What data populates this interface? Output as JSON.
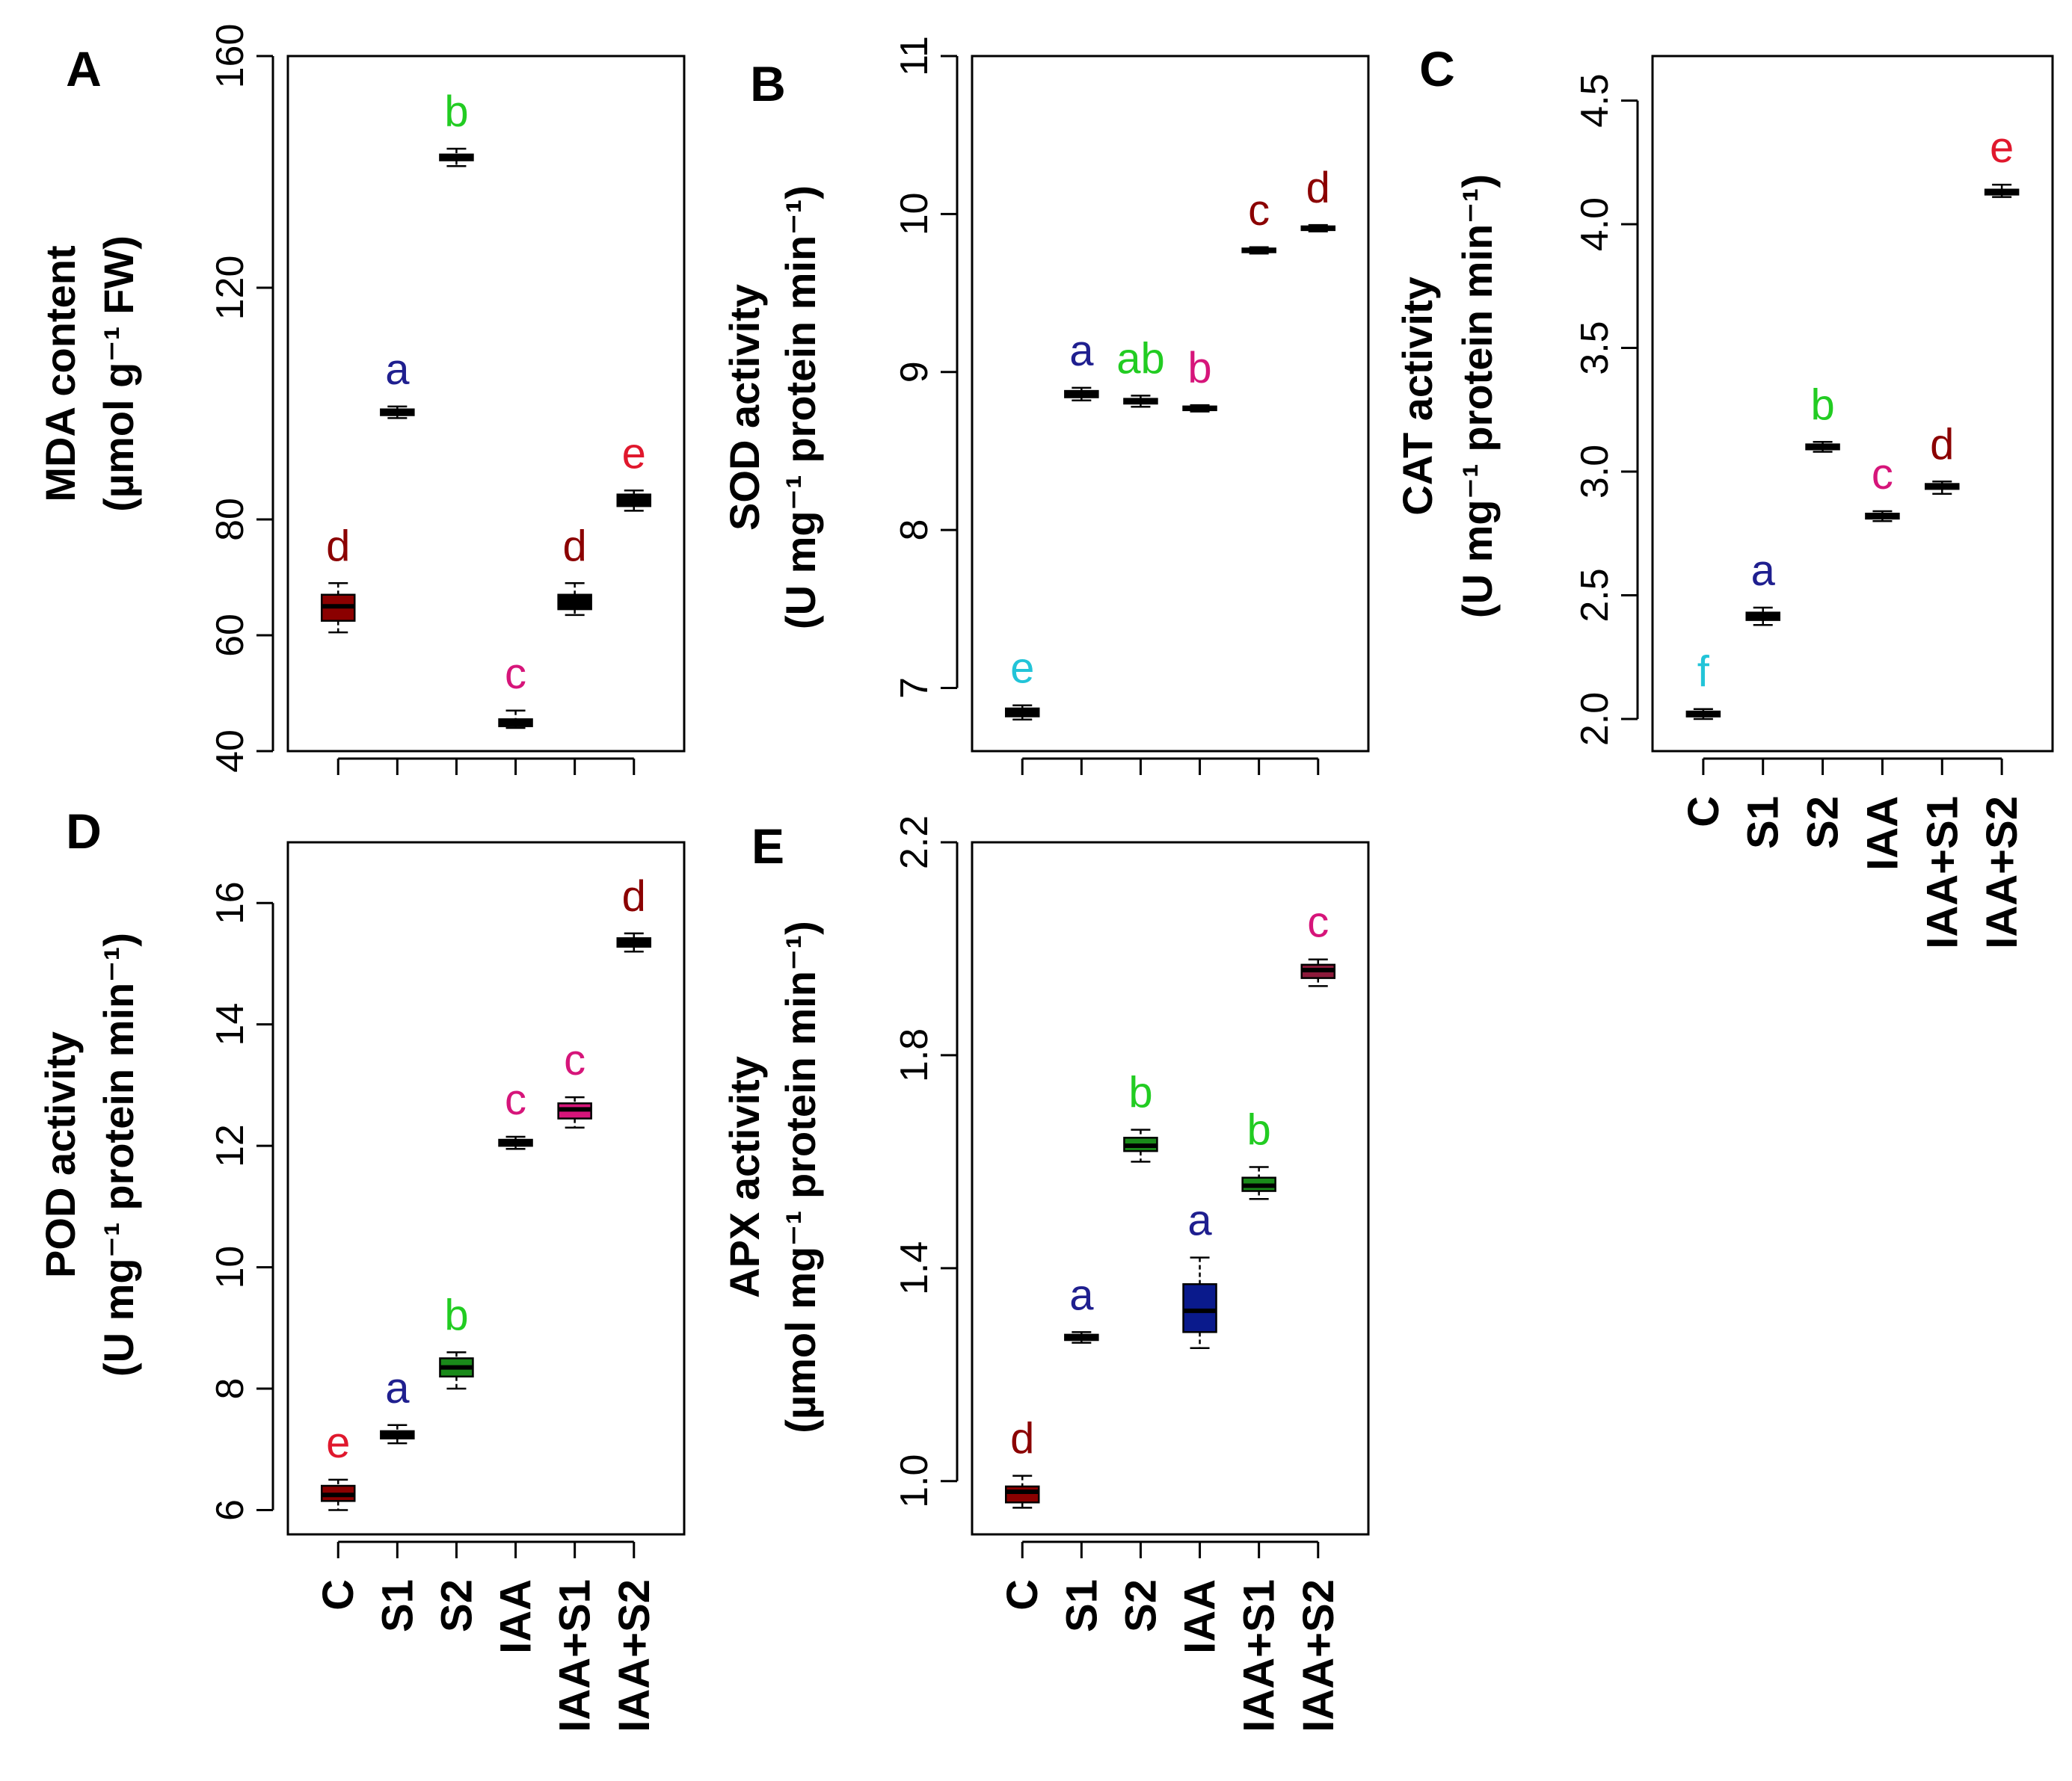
{
  "chart_data": [
    {
      "type": "box",
      "panel": "A",
      "ylabel_line1": "MDA content",
      "ylabel_line2": "(µmol g⁻¹ FW)",
      "ylim": [
        40,
        160
      ],
      "yticks": [
        40,
        60,
        80,
        120,
        160
      ],
      "ytick_labels": [
        "40",
        "60",
        "80",
        "120",
        "160"
      ],
      "categories": [
        "C",
        "S1",
        "S2",
        "IAA",
        "IAA+S1",
        "IAA+S2"
      ],
      "show_category_labels": false,
      "boxes": [
        {
          "min": 60.5,
          "q1": 62.5,
          "median": 65,
          "q3": 67,
          "max": 69,
          "fill": "#8b0000"
        },
        {
          "min": 97.5,
          "q1": 98,
          "median": 98.5,
          "q3": 99,
          "max": 99.5,
          "fill": "#000000"
        },
        {
          "min": 141,
          "q1": 142,
          "median": 142.5,
          "q3": 143,
          "max": 144,
          "fill": "#000000"
        },
        {
          "min": 44,
          "q1": 44.3,
          "median": 45,
          "q3": 45.5,
          "max": 47,
          "fill": "#000000"
        },
        {
          "min": 63.5,
          "q1": 64.5,
          "median": 65.5,
          "q3": 67,
          "max": 69,
          "fill": "#000000"
        },
        {
          "min": 81.5,
          "q1": 82.3,
          "median": 83.5,
          "q3": 84.3,
          "max": 85,
          "fill": "#000000"
        }
      ],
      "letters": [
        "d",
        "a",
        "b",
        "c",
        "d",
        "e"
      ],
      "letter_colors": [
        "#8b0000",
        "#1f1f8f",
        "#22cc22",
        "#d6157a",
        "#8b0000",
        "#e0182d"
      ]
    },
    {
      "type": "box",
      "panel": "B",
      "ylabel_line1": "SOD activity",
      "ylabel_line2": "(U mg⁻¹ protein min⁻¹)",
      "ylim": [
        6.6,
        11.0
      ],
      "yticks": [
        7,
        8,
        9,
        10,
        11
      ],
      "ytick_labels": [
        "7",
        "8",
        "9",
        "10",
        "11"
      ],
      "categories": [
        "C",
        "S1",
        "S2",
        "IAA",
        "IAA+S1",
        "IAA+S2"
      ],
      "show_category_labels": false,
      "boxes": [
        {
          "min": 6.8,
          "q1": 6.82,
          "median": 6.85,
          "q3": 6.87,
          "max": 6.89,
          "fill": "#000000"
        },
        {
          "min": 8.82,
          "q1": 8.84,
          "median": 8.86,
          "q3": 8.88,
          "max": 8.9,
          "fill": "#000000"
        },
        {
          "min": 8.78,
          "q1": 8.8,
          "median": 8.82,
          "q3": 8.83,
          "max": 8.85,
          "fill": "#000000"
        },
        {
          "min": 8.75,
          "q1": 8.76,
          "median": 8.77,
          "q3": 8.78,
          "max": 8.79,
          "fill": "#000000"
        },
        {
          "min": 9.75,
          "q1": 9.76,
          "median": 9.77,
          "q3": 9.78,
          "max": 9.79,
          "fill": "#000000"
        },
        {
          "min": 9.89,
          "q1": 9.9,
          "median": 9.91,
          "q3": 9.92,
          "max": 9.93,
          "fill": "#000000"
        }
      ],
      "letters": [
        "e",
        "a",
        "ab",
        "b",
        "c",
        "d"
      ],
      "letter_colors": [
        "#22c4d8",
        "#1f1f8f",
        "#22cc22",
        "#d6157a",
        "#8b0000",
        "#8b0000"
      ]
    },
    {
      "type": "box",
      "panel": "C",
      "ylabel_line1": "CAT activity",
      "ylabel_line2": "(U mg⁻¹ protein min⁻¹)",
      "ylim": [
        1.87,
        4.68
      ],
      "yticks": [
        2.0,
        2.5,
        3.0,
        3.5,
        4.0,
        4.5
      ],
      "ytick_labels": [
        "2.0",
        "2.5",
        "3.0",
        "3.5",
        "4.0",
        "4.5"
      ],
      "categories": [
        "C",
        "S1",
        "S2",
        "IAA",
        "IAA+S1",
        "IAA+S2"
      ],
      "show_category_labels": true,
      "boxes": [
        {
          "min": 2.0,
          "q1": 2.01,
          "median": 2.02,
          "q3": 2.03,
          "max": 2.04,
          "fill": "#000000"
        },
        {
          "min": 2.38,
          "q1": 2.4,
          "median": 2.42,
          "q3": 2.43,
          "max": 2.45,
          "fill": "#000000"
        },
        {
          "min": 3.08,
          "q1": 3.09,
          "median": 3.1,
          "q3": 3.11,
          "max": 3.12,
          "fill": "#000000"
        },
        {
          "min": 2.8,
          "q1": 2.81,
          "median": 2.82,
          "q3": 2.83,
          "max": 2.84,
          "fill": "#000000"
        },
        {
          "min": 2.91,
          "q1": 2.93,
          "median": 2.94,
          "q3": 2.95,
          "max": 2.96,
          "fill": "#000000"
        },
        {
          "min": 4.11,
          "q1": 4.12,
          "median": 4.13,
          "q3": 4.14,
          "max": 4.16,
          "fill": "#000000"
        }
      ],
      "letters": [
        "f",
        "a",
        "b",
        "c",
        "d",
        "e"
      ],
      "letter_colors": [
        "#22c4d8",
        "#1f1f8f",
        "#22cc22",
        "#d6157a",
        "#8b0000",
        "#e0182d"
      ]
    },
    {
      "type": "box",
      "panel": "D",
      "ylabel_line1": "POD activity",
      "ylabel_line2": "(U mg⁻¹ protein min⁻¹)",
      "ylim": [
        5.6,
        17.0
      ],
      "yticks": [
        6,
        8,
        10,
        12,
        14,
        16
      ],
      "ytick_labels": [
        "6",
        "8",
        "10",
        "12",
        "14",
        "16"
      ],
      "categories": [
        "C",
        "S1",
        "S2",
        "IAA",
        "IAA+S1",
        "IAA+S2"
      ],
      "show_category_labels": true,
      "boxes": [
        {
          "min": 6.0,
          "q1": 6.15,
          "median": 6.25,
          "q3": 6.4,
          "max": 6.5,
          "fill": "#8b0000"
        },
        {
          "min": 7.1,
          "q1": 7.18,
          "median": 7.25,
          "q3": 7.3,
          "max": 7.4,
          "fill": "#000000"
        },
        {
          "min": 8.0,
          "q1": 8.2,
          "median": 8.35,
          "q3": 8.5,
          "max": 8.6,
          "fill": "#1a8a1a"
        },
        {
          "min": 11.95,
          "q1": 12.0,
          "median": 12.05,
          "q3": 12.1,
          "max": 12.15,
          "fill": "#000000"
        },
        {
          "min": 12.3,
          "q1": 12.45,
          "median": 12.6,
          "q3": 12.7,
          "max": 12.8,
          "fill": "#d6157a"
        },
        {
          "min": 15.2,
          "q1": 15.28,
          "median": 15.35,
          "q3": 15.42,
          "max": 15.5,
          "fill": "#000000"
        }
      ],
      "letters": [
        "e",
        "a",
        "b",
        "c",
        "c",
        "d"
      ],
      "letter_colors": [
        "#e0182d",
        "#1f1f8f",
        "#22cc22",
        "#d6157a",
        "#d6157a",
        "#8b0000"
      ]
    },
    {
      "type": "box",
      "panel": "E",
      "ylabel_line1": "APX activity",
      "ylabel_line2": "(µmol mg⁻¹ protein min⁻¹)",
      "ylim": [
        0.9,
        2.2
      ],
      "yticks": [
        1.0,
        1.4,
        1.8,
        2.2
      ],
      "ytick_labels": [
        "1.0",
        "1.4",
        "1.8",
        "2.2"
      ],
      "categories": [
        "C",
        "S1",
        "S2",
        "IAA",
        "IAA+S1",
        "IAA+S2"
      ],
      "show_category_labels": true,
      "boxes": [
        {
          "min": 0.95,
          "q1": 0.96,
          "median": 0.98,
          "q3": 0.99,
          "max": 1.01,
          "fill": "#8b0000"
        },
        {
          "min": 1.26,
          "q1": 1.265,
          "median": 1.27,
          "q3": 1.275,
          "max": 1.28,
          "fill": "#000000"
        },
        {
          "min": 1.6,
          "q1": 1.62,
          "median": 1.63,
          "q3": 1.645,
          "max": 1.66,
          "fill": "#1a8a1a"
        },
        {
          "min": 1.25,
          "q1": 1.28,
          "median": 1.32,
          "q3": 1.37,
          "max": 1.42,
          "fill": "#0a1a8c"
        },
        {
          "min": 1.53,
          "q1": 1.545,
          "median": 1.555,
          "q3": 1.57,
          "max": 1.59,
          "fill": "#1a8a1a"
        },
        {
          "min": 1.93,
          "q1": 1.945,
          "median": 1.96,
          "q3": 1.97,
          "max": 1.98,
          "fill": "#8b1a3a"
        }
      ],
      "letters": [
        "d",
        "a",
        "b",
        "a",
        "b",
        "c"
      ],
      "letter_colors": [
        "#8b0000",
        "#1f1f8f",
        "#22cc22",
        "#1f1f8f",
        "#22cc22",
        "#d6157a"
      ]
    }
  ]
}
